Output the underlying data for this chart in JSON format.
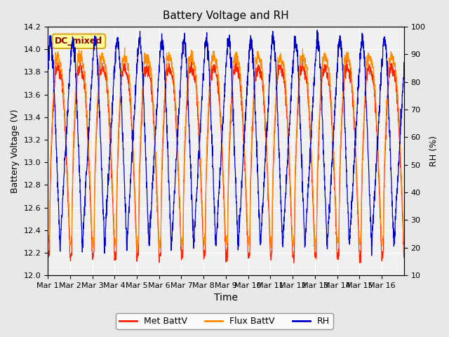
{
  "title": "Battery Voltage and RH",
  "xlabel": "Time",
  "ylabel_left": "Battery Voltage (V)",
  "ylabel_right": "RH (%)",
  "ylim_left": [
    12.0,
    14.2
  ],
  "ylim_right": [
    10,
    100
  ],
  "yticks_left": [
    12.0,
    12.2,
    12.4,
    12.6,
    12.8,
    13.0,
    13.2,
    13.4,
    13.6,
    13.8,
    14.0,
    14.2
  ],
  "yticks_right": [
    10,
    20,
    30,
    40,
    50,
    60,
    70,
    80,
    90,
    100
  ],
  "xtick_labels": [
    "Mar 1",
    "Mar 2",
    "Mar 3",
    "Mar 4",
    "Mar 5",
    "Mar 6",
    "Mar 7",
    "Mar 8",
    "Mar 9",
    "Mar 10",
    "Mar 11",
    "Mar 12",
    "Mar 13",
    "Mar 14",
    "Mar 15",
    "Mar 16"
  ],
  "annotation_text": "DC_mixed",
  "annotation_color": "#8B0000",
  "annotation_bg": "#FFFF99",
  "annotation_border": "#DAA520",
  "color_met": "#FF2200",
  "color_flux": "#FF8C00",
  "color_rh": "#0000CC",
  "legend_labels": [
    "Met BattV",
    "Flux BattV",
    "RH"
  ],
  "bg_color": "#E8E8E8",
  "plot_bg": "#F0F0F0",
  "n_days": 16,
  "points_per_day": 144
}
